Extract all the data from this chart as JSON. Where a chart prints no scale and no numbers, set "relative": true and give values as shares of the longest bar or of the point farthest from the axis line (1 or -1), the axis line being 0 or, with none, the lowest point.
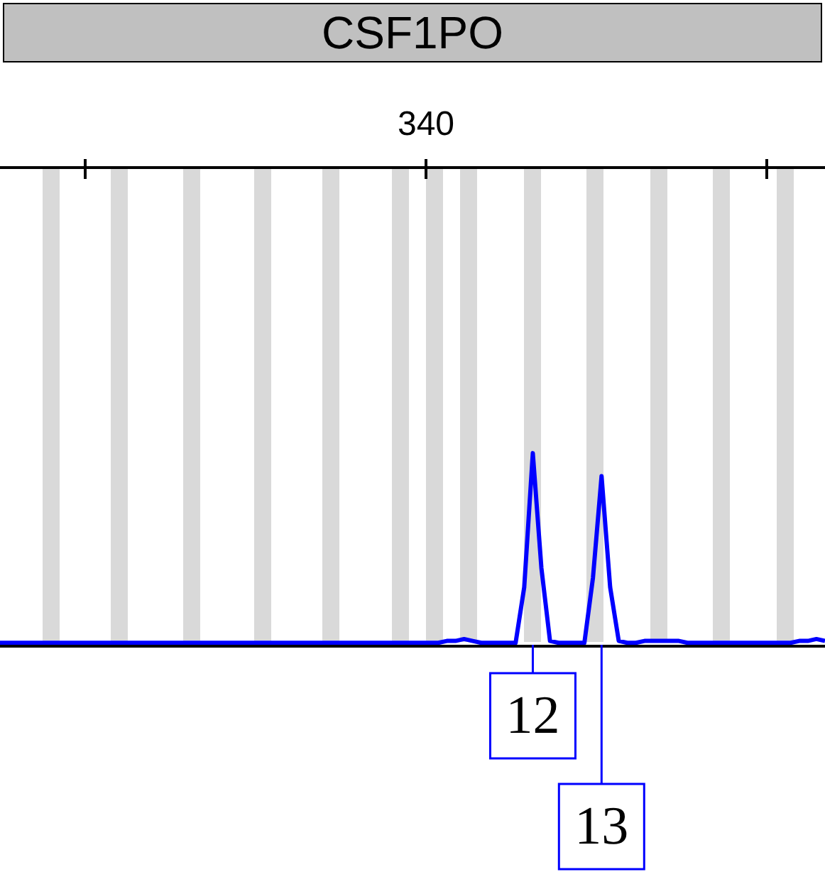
{
  "chart_data": {
    "type": "line",
    "title": "CSF1PO",
    "relative": true,
    "legend": false,
    "marker": "none",
    "line_style": "solid",
    "categories": [
      null,
      null,
      null,
      null,
      null,
      null,
      null,
      null,
      null,
      null,
      null,
      null,
      null,
      null,
      null,
      null,
      null,
      null,
      null,
      null,
      null,
      null,
      null,
      null,
      null,
      null,
      null,
      null,
      null,
      null,
      null,
      null,
      null,
      null,
      null,
      null,
      null,
      null,
      null,
      null,
      null,
      null,
      null,
      null,
      null,
      null,
      null,
      null,
      null,
      null,
      null,
      null,
      null,
      null,
      null,
      null,
      null,
      null,
      null,
      null,
      null,
      null,
      null,
      null,
      null,
      null,
      null,
      null,
      null,
      null,
      null,
      null,
      null,
      null,
      null,
      null,
      null,
      null,
      null,
      null,
      null,
      null,
      null,
      null,
      null,
      null,
      null,
      null,
      null,
      null,
      null,
      null,
      null,
      null,
      null,
      null,
      null
    ],
    "series": [
      {
        "color": "#0000ff",
        "values": [
          0.01,
          0.01,
          0.01,
          0.01,
          0.01,
          0.01,
          0.01,
          0.01,
          0.01,
          0.01,
          0.01,
          0.01,
          0.01,
          0.01,
          0.01,
          0.01,
          0.01,
          0.01,
          0.01,
          0.01,
          0.01,
          0.01,
          0.01,
          0.01,
          0.01,
          0.01,
          0.01,
          0.01,
          0.01,
          0.01,
          0.01,
          0.01,
          0.01,
          0.01,
          0.01,
          0.01,
          0.01,
          0.01,
          0.01,
          0.01,
          0.01,
          0.01,
          0.01,
          0.01,
          0.01,
          0.01,
          0.01,
          0.01,
          0.01,
          0.01,
          0.01,
          0.01,
          0.02,
          0.02,
          0.03,
          0.02,
          0.01,
          0.01,
          0.01,
          0.01,
          0.01,
          0.3,
          1,
          0.4,
          0.02,
          0.01,
          0.01,
          0.01,
          0.01,
          0.35,
          0.88,
          0.3,
          0.02,
          0.01,
          0.01,
          0.02,
          0.02,
          0.02,
          0.02,
          0.02,
          0.01,
          0.01,
          0.01,
          0.01,
          0.01,
          0.01,
          0.01,
          0.01,
          0.01,
          0.01,
          0.01,
          0.01,
          0.01,
          0.02,
          0.02,
          0.03,
          0.02
        ]
      }
    ],
    "annotations": [
      "340",
      "12",
      "13"
    ]
  }
}
